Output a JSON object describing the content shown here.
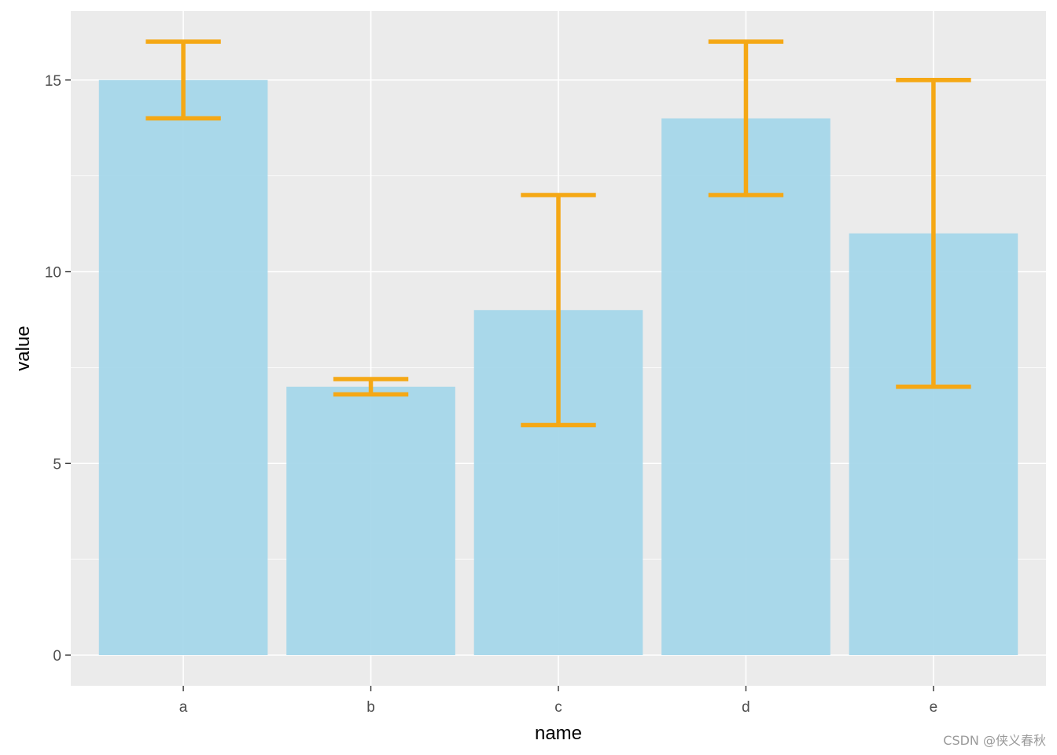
{
  "chart_data": {
    "type": "bar",
    "categories": [
      "a",
      "b",
      "c",
      "d",
      "e"
    ],
    "values": [
      15,
      7,
      9,
      14,
      11
    ],
    "error_bars": [
      {
        "low": 14,
        "high": 16
      },
      {
        "low": 6.8,
        "high": 7.2
      },
      {
        "low": 6,
        "high": 12
      },
      {
        "low": 12,
        "high": 16
      },
      {
        "low": 7,
        "high": 15
      }
    ],
    "xlabel": "name",
    "ylabel": "value",
    "ylim": [
      -0.8,
      16.8
    ],
    "yticks": [
      0,
      5,
      10,
      15
    ],
    "yticks_labels": [
      "0",
      "5",
      "10",
      "15"
    ],
    "grid": true,
    "colors": {
      "bar": "#a5d7ea",
      "error_bar": "#f5a815",
      "panel": "#ebebeb",
      "grid": "#ffffff",
      "tick_text": "#4d4d4d",
      "title_text": "#000000"
    }
  },
  "watermark": "CSDN @侠义春秋"
}
